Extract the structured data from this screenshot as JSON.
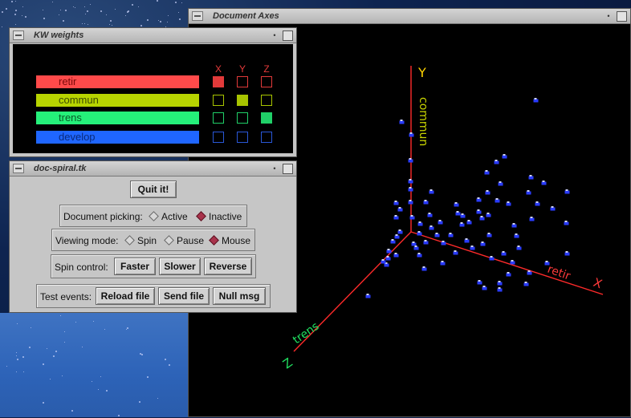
{
  "axes_window": {
    "title": "Document Axes"
  },
  "kw_window": {
    "title": "KW weights",
    "headers": [
      "X",
      "Y",
      "Z"
    ],
    "rows": [
      {
        "label": "retir",
        "color": "#ff4a4a",
        "text_color": "#7a0a0a",
        "box_color": "#e23a3a",
        "checked": [
          true,
          false,
          false
        ]
      },
      {
        "label": "commun",
        "color": "#b7d400",
        "text_color": "#3c4a00",
        "box_color": "#a8c400",
        "checked": [
          false,
          true,
          false
        ]
      },
      {
        "label": "trens",
        "color": "#25f07a",
        "text_color": "#0a5a28",
        "box_color": "#20d068",
        "checked": [
          false,
          false,
          true
        ]
      },
      {
        "label": "develop",
        "color": "#1f66ff",
        "text_color": "#0a2a7a",
        "box_color": "#2a58d8",
        "checked": [
          false,
          false,
          false
        ]
      }
    ]
  },
  "spiral_window": {
    "title": "doc-spiral.tk",
    "quit_label": "Quit it!",
    "picking": {
      "label": "Document picking:",
      "options": [
        "Active",
        "Inactive"
      ],
      "selected": "Inactive"
    },
    "viewing": {
      "label": "Viewing mode:",
      "options": [
        "Spin",
        "Pause",
        "Mouse"
      ],
      "selected": "Mouse"
    },
    "spin": {
      "label": "Spin control:",
      "buttons": [
        "Faster",
        "Slower",
        "Reverse"
      ]
    },
    "test": {
      "label": "Test events:",
      "buttons": [
        "Reload file",
        "Send file",
        "Null msg"
      ]
    }
  },
  "plot": {
    "axis_y_label": "Y",
    "axis_y_word": "commun",
    "axis_x_word": "retir",
    "axis_x_label": "X",
    "axis_z_word": "trens",
    "axis_z_label": "Z",
    "colors": {
      "axis": "#ff2a2a",
      "y_text": "#ffd400",
      "commun_text": "#c8d400",
      "x_text": "#ff3a3a",
      "z_text": "#20e060",
      "point": "#2a3cff"
    }
  }
}
